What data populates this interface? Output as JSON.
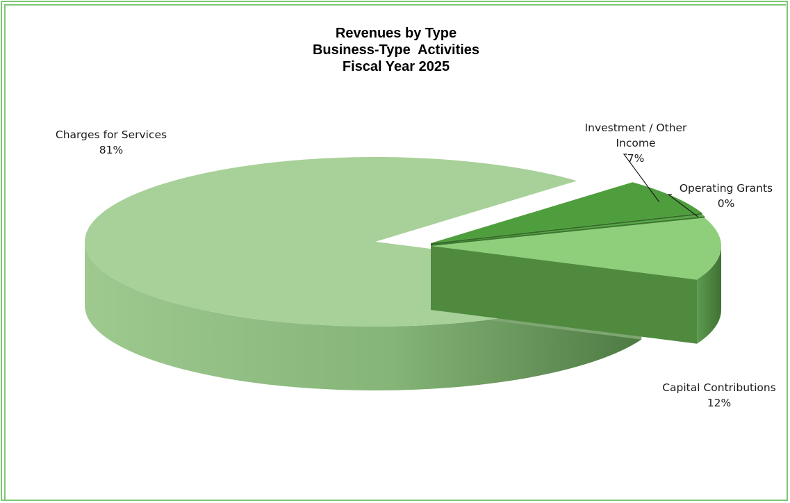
{
  "chart_data": {
    "type": "pie",
    "title_lines": [
      "Revenues by Type",
      "Business-Type  Activities",
      "Fiscal Year 2025"
    ],
    "slices": [
      {
        "label_lines": [
          "Charges for Services"
        ],
        "percent_label": "81%",
        "value": 81,
        "color": "#a8d199",
        "side_color": "#8ab27c"
      },
      {
        "label_lines": [
          "Capital Contributions"
        ],
        "percent_label": "12%",
        "value": 12,
        "color": "#8fcf7c",
        "side_color": "#4f8a3f"
      },
      {
        "label_lines": [
          "Operating Grants"
        ],
        "percent_label": "0%",
        "value": 0.4,
        "color": "#5aa84a",
        "side_color": "#3c7530"
      },
      {
        "label_lines": [
          "Investment / Other",
          "Income"
        ],
        "percent_label": "7%",
        "value": 7,
        "color": "#4f9e3d",
        "side_color": "#356b29"
      }
    ],
    "border_color": "#7dc773"
  }
}
